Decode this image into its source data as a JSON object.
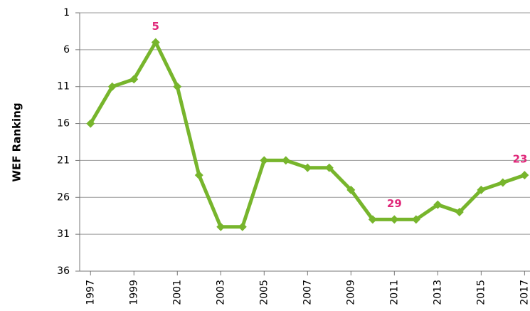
{
  "chart_data": {
    "type": "line",
    "ylabel": "WEF Ranking",
    "x": [
      1997,
      1998,
      1999,
      2000,
      2001,
      2002,
      2003,
      2004,
      2005,
      2006,
      2007,
      2008,
      2009,
      2010,
      2011,
      2012,
      2013,
      2014,
      2015,
      2016,
      2017
    ],
    "series": [
      {
        "name": "WEF Ranking",
        "color": "#77b52c",
        "values": [
          16,
          11,
          10,
          5,
          11,
          23,
          30,
          30,
          21,
          21,
          22,
          22,
          25,
          29,
          29,
          29,
          27,
          28,
          25,
          24,
          23
        ],
        "value_labels": [
          null,
          null,
          null,
          "5",
          null,
          null,
          null,
          null,
          null,
          null,
          null,
          null,
          null,
          null,
          "29",
          null,
          null,
          null,
          null,
          null,
          "23"
        ],
        "label_color": "#e0287a"
      }
    ],
    "xlim": [
      1996.5,
      2017.25
    ],
    "xticks": [
      1997,
      1999,
      2001,
      2003,
      2005,
      2007,
      2009,
      2011,
      2013,
      2015,
      2017
    ],
    "ylim": [
      1,
      36
    ],
    "y_inverted": true,
    "yticks": [
      1,
      6,
      11,
      16,
      21,
      26,
      31,
      36
    ],
    "grid": true
  }
}
